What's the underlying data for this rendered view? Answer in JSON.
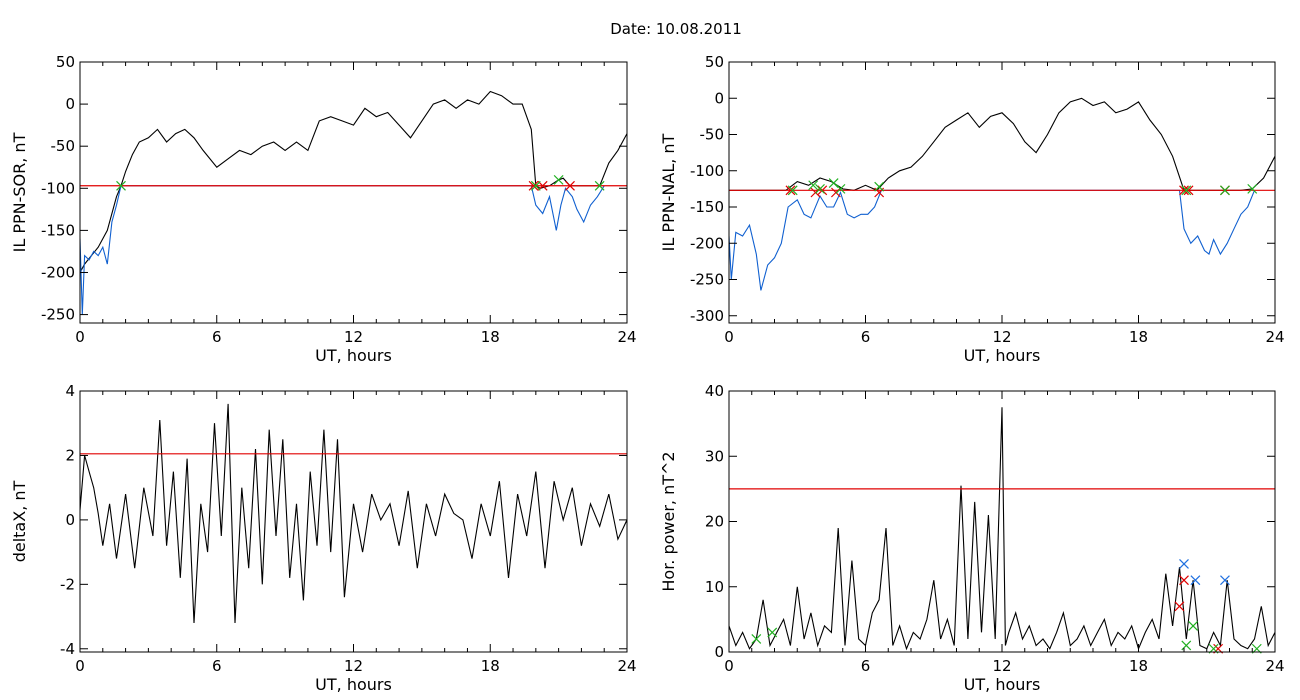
{
  "figure": {
    "title": "Date:  10.08.2011"
  },
  "chart_data": [
    {
      "type": "line",
      "xlabel": "UT, hours",
      "ylabel": "IL PPN-SOR, nT",
      "xlim": [
        0,
        24
      ],
      "ylim": [
        -260,
        50
      ],
      "xticks": [
        0,
        6,
        12,
        18,
        24
      ],
      "yticks": [
        50,
        0,
        -50,
        -100,
        -150,
        -200,
        -250
      ],
      "threshold": {
        "value": -97,
        "color": "#e00000"
      },
      "series": [
        {
          "color": "#000000",
          "x": [
            0,
            0.2,
            0.5,
            0.8,
            1.2,
            1.6,
            1.8,
            2.0,
            2.3,
            2.6,
            3.0,
            3.4,
            3.8,
            4.2,
            4.6,
            5.0,
            5.4,
            6.0,
            6.5,
            7.0,
            7.5,
            8.0,
            8.5,
            9.0,
            9.5,
            10.0,
            10.5,
            11.0,
            11.5,
            12.0,
            12.5,
            13.0,
            13.5,
            14.0,
            14.5,
            15.0,
            15.5,
            16.0,
            16.5,
            17.0,
            17.5,
            18.0,
            18.5,
            19.0,
            19.4,
            19.8,
            20.0,
            20.2,
            20.6,
            21.0,
            21.2,
            21.5,
            22.0,
            22.4,
            22.8,
            23.2,
            23.6,
            24.0
          ],
          "y": [
            -200,
            -190,
            -180,
            -170,
            -150,
            -110,
            -97,
            -80,
            -60,
            -45,
            -40,
            -30,
            -45,
            -35,
            -30,
            -40,
            -55,
            -75,
            -65,
            -55,
            -60,
            -50,
            -45,
            -55,
            -45,
            -55,
            -20,
            -15,
            -20,
            -25,
            -5,
            -15,
            -10,
            -25,
            -40,
            -20,
            0,
            5,
            -5,
            5,
            0,
            15,
            10,
            0,
            0,
            -30,
            -97,
            -100,
            -97,
            -90,
            -88,
            -97,
            -97,
            -97,
            -97,
            -70,
            -55,
            -35
          ]
        },
        {
          "color": "#1060d0",
          "x": [
            0,
            0.1,
            0.2,
            0.4,
            0.6,
            0.8,
            1.0,
            1.2,
            1.4,
            1.6,
            1.8,
            19.8,
            20.0,
            20.3,
            20.6,
            20.9,
            21.1,
            21.3,
            21.6,
            21.8,
            22.1,
            22.4,
            22.7,
            23.0
          ],
          "y": [
            -160,
            -250,
            -180,
            -185,
            -175,
            -180,
            -170,
            -190,
            -140,
            -120,
            -97,
            -97,
            -120,
            -130,
            -110,
            -150,
            -120,
            -100,
            -110,
            -125,
            -140,
            -120,
            -110,
            -97
          ]
        }
      ],
      "markers": [
        {
          "type": "cross",
          "color": "#e00000",
          "x": [
            19.9,
            20.3,
            21.5
          ],
          "y": [
            -97,
            -97,
            -97
          ]
        },
        {
          "type": "cross",
          "color": "#20b020",
          "x": [
            1.8,
            20.0,
            21.0,
            22.8
          ],
          "y": [
            -97,
            -97,
            -90,
            -97
          ]
        }
      ]
    },
    {
      "type": "line",
      "xlabel": "UT, hours",
      "ylabel": "IL PPN-NAL, nT",
      "xlim": [
        0,
        24
      ],
      "ylim": [
        -310,
        50
      ],
      "xticks": [
        0,
        6,
        12,
        18,
        24
      ],
      "yticks": [
        50,
        0,
        -50,
        -100,
        -150,
        -200,
        -250,
        -300
      ],
      "threshold": {
        "value": -127,
        "color": "#e00000"
      },
      "series": [
        {
          "color": "#000000",
          "x": [
            0,
            2.5,
            3.0,
            3.5,
            4.0,
            4.5,
            5.0,
            5.5,
            6.0,
            6.5,
            7.0,
            7.5,
            8.0,
            8.5,
            9.0,
            9.5,
            10.0,
            10.5,
            11.0,
            11.5,
            12.0,
            12.5,
            13.0,
            13.5,
            14.0,
            14.5,
            15.0,
            15.5,
            16.0,
            16.5,
            17.0,
            17.5,
            18.0,
            18.5,
            19.0,
            19.5,
            20.0,
            21.5,
            22.0,
            22.5,
            23.0,
            23.5,
            24.0
          ],
          "y": [
            -127,
            -127,
            -115,
            -120,
            -110,
            -115,
            -125,
            -127,
            -120,
            -127,
            -110,
            -100,
            -95,
            -80,
            -60,
            -40,
            -30,
            -20,
            -40,
            -25,
            -20,
            -35,
            -60,
            -75,
            -50,
            -20,
            -5,
            0,
            -10,
            -5,
            -20,
            -15,
            -5,
            -30,
            -50,
            -80,
            -127,
            -127,
            -127,
            -127,
            -125,
            -110,
            -80
          ]
        },
        {
          "color": "#1060d0",
          "x": [
            0,
            0.1,
            0.3,
            0.6,
            0.9,
            1.2,
            1.4,
            1.7,
            2.0,
            2.3,
            2.6,
            3.0,
            3.3,
            3.6,
            4.0,
            4.3,
            4.6,
            4.9,
            5.2,
            5.5,
            5.8,
            6.1,
            6.4,
            6.7,
            19.8,
            20.0,
            20.3,
            20.6,
            20.9,
            21.1,
            21.3,
            21.6,
            21.9,
            22.2,
            22.5,
            22.8,
            23.1
          ],
          "y": [
            -190,
            -250,
            -185,
            -190,
            -175,
            -215,
            -265,
            -230,
            -220,
            -200,
            -150,
            -140,
            -160,
            -165,
            -135,
            -150,
            -150,
            -130,
            -160,
            -165,
            -160,
            -160,
            -150,
            -127,
            -127,
            -180,
            -200,
            -190,
            -210,
            -215,
            -195,
            -215,
            -200,
            -180,
            -160,
            -150,
            -127
          ]
        }
      ],
      "markers": [
        {
          "type": "cross",
          "color": "#e00000",
          "x": [
            2.7,
            3.8,
            4.1,
            4.7,
            6.6,
            20.0,
            20.2,
            21.8
          ],
          "y": [
            -127,
            -130,
            -127,
            -130,
            -130,
            -127,
            -127,
            -127
          ]
        },
        {
          "type": "cross",
          "color": "#20b020",
          "x": [
            2.8,
            3.7,
            4.0,
            4.6,
            4.9,
            6.6,
            20.1,
            21.8,
            23.0
          ],
          "y": [
            -127,
            -120,
            -125,
            -117,
            -125,
            -122,
            -127,
            -127,
            -125
          ]
        }
      ]
    },
    {
      "type": "line",
      "xlabel": "UT, hours",
      "ylabel": "deltaX, nT",
      "xlim": [
        0,
        24
      ],
      "ylim": [
        -4.1,
        4
      ],
      "xticks": [
        0,
        6,
        12,
        18,
        24
      ],
      "yticks": [
        4,
        2,
        0,
        -2,
        -4
      ],
      "threshold": {
        "value": 2.05,
        "color": "#e00000"
      },
      "series": [
        {
          "color": "#000000",
          "x": [
            0,
            0.2,
            0.4,
            0.6,
            0.8,
            1.0,
            1.3,
            1.6,
            2.0,
            2.4,
            2.8,
            3.2,
            3.5,
            3.8,
            4.1,
            4.4,
            4.7,
            5.0,
            5.3,
            5.6,
            5.9,
            6.2,
            6.5,
            6.8,
            7.1,
            7.4,
            7.7,
            8.0,
            8.3,
            8.6,
            8.9,
            9.2,
            9.5,
            9.8,
            10.1,
            10.4,
            10.7,
            11.0,
            11.3,
            11.6,
            12.0,
            12.4,
            12.8,
            13.2,
            13.6,
            14.0,
            14.4,
            14.8,
            15.2,
            15.6,
            16.0,
            16.4,
            16.8,
            17.2,
            17.6,
            18.0,
            18.4,
            18.8,
            19.2,
            19.6,
            20.0,
            20.4,
            20.8,
            21.2,
            21.6,
            22.0,
            22.4,
            22.8,
            23.2,
            23.6,
            24.0
          ],
          "y": [
            0.3,
            2.0,
            1.5,
            1.0,
            0.2,
            -0.8,
            0.5,
            -1.2,
            0.8,
            -1.5,
            1.0,
            -0.5,
            3.1,
            -0.8,
            1.5,
            -1.8,
            1.9,
            -3.2,
            0.5,
            -1.0,
            3.0,
            -0.5,
            3.6,
            -3.2,
            1.0,
            -1.5,
            2.2,
            -2.0,
            2.8,
            -0.5,
            2.5,
            -1.8,
            0.5,
            -2.5,
            1.5,
            -0.8,
            2.8,
            -1.0,
            2.5,
            -2.4,
            0.5,
            -1.0,
            0.8,
            0.0,
            0.5,
            -0.8,
            0.9,
            -1.5,
            0.5,
            -0.5,
            0.8,
            0.2,
            0.0,
            -1.2,
            0.5,
            -0.5,
            1.2,
            -1.8,
            0.8,
            -0.5,
            1.5,
            -1.5,
            1.2,
            0.0,
            1.0,
            -0.8,
            0.5,
            -0.2,
            0.8,
            -0.6,
            0.0
          ]
        }
      ],
      "markers": []
    },
    {
      "type": "line",
      "xlabel": "UT, hours",
      "ylabel": "Hor. power, nT^2",
      "xlim": [
        0,
        24
      ],
      "ylim": [
        0,
        40
      ],
      "xticks": [
        0,
        6,
        12,
        18,
        24
      ],
      "yticks": [
        40,
        30,
        20,
        10,
        0
      ],
      "threshold": {
        "value": 25,
        "color": "#e00000"
      },
      "series": [
        {
          "color": "#000000",
          "x": [
            0,
            0.3,
            0.6,
            0.9,
            1.2,
            1.5,
            1.8,
            2.1,
            2.4,
            2.7,
            3.0,
            3.3,
            3.6,
            3.9,
            4.2,
            4.5,
            4.8,
            5.1,
            5.4,
            5.7,
            6.0,
            6.3,
            6.6,
            6.9,
            7.2,
            7.5,
            7.8,
            8.1,
            8.4,
            8.7,
            9.0,
            9.3,
            9.6,
            9.9,
            10.2,
            10.5,
            10.8,
            11.1,
            11.4,
            11.7,
            12.0,
            12.15,
            12.3,
            12.6,
            12.9,
            13.2,
            13.5,
            13.8,
            14.1,
            14.4,
            14.7,
            15.0,
            15.3,
            15.6,
            15.9,
            16.2,
            16.5,
            16.8,
            17.1,
            17.4,
            17.7,
            18.0,
            18.3,
            18.6,
            18.9,
            19.2,
            19.5,
            19.8,
            20.1,
            20.4,
            20.7,
            21.0,
            21.3,
            21.6,
            21.9,
            22.2,
            22.5,
            22.8,
            23.1,
            23.4,
            23.7,
            24.0
          ],
          "y": [
            4,
            1,
            3,
            0.5,
            2,
            8,
            1,
            3,
            5,
            1,
            10,
            2,
            6,
            1,
            4,
            3,
            19,
            1,
            14,
            2,
            1,
            6,
            8,
            19,
            1,
            4,
            0.5,
            3,
            2,
            5,
            11,
            2,
            5,
            1,
            25.5,
            2,
            23,
            3,
            21,
            2,
            37.5,
            1,
            3,
            6,
            2,
            4,
            1,
            2,
            0.5,
            3,
            6,
            1,
            2,
            4,
            1,
            3,
            5,
            1,
            3,
            2,
            4,
            0.5,
            3,
            5,
            2,
            12,
            4,
            13,
            2,
            11,
            1,
            0.5,
            3,
            1,
            11,
            2,
            1,
            0.5,
            2,
            7,
            1,
            3
          ]
        }
      ],
      "markers": [
        {
          "type": "cross",
          "color": "#2070e0",
          "x": [
            20.0,
            20.5,
            21.8
          ],
          "y": [
            13.5,
            11,
            11
          ]
        },
        {
          "type": "cross",
          "color": "#e00000",
          "x": [
            19.8,
            20.0,
            21.5
          ],
          "y": [
            7,
            11,
            0.5
          ]
        },
        {
          "type": "cross",
          "color": "#20b020",
          "x": [
            1.2,
            1.9,
            20.1,
            20.4,
            21.3,
            23.2
          ],
          "y": [
            2,
            3,
            1,
            4,
            0.5,
            0.5
          ]
        }
      ]
    }
  ]
}
